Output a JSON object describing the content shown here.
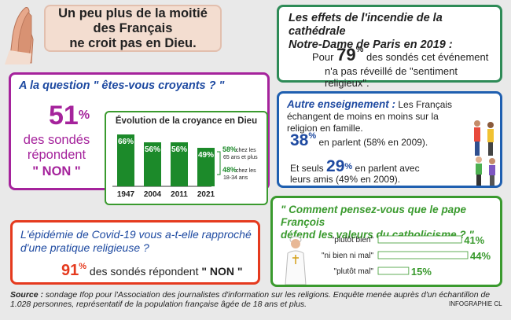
{
  "headline": "Un peu plus de la moitié des Français\nne croit pas en Dieu.",
  "question_block": {
    "question": "A la question \" êtes-vous croyants ? \"",
    "big_value": "51",
    "pct_sign": "%",
    "respondent_text": "des sondés\nrépondent",
    "answer": "\" NON \""
  },
  "chart_data": [
    {
      "type": "bar",
      "title": "Évolution de la croyance en Dieu",
      "categories": [
        "1947",
        "2004",
        "2011",
        "2021"
      ],
      "values": [
        66,
        56,
        56,
        49
      ],
      "value_labels": [
        "66%",
        "56%",
        "56%",
        "49%"
      ],
      "ylim": [
        0,
        70
      ],
      "color": "#1c8a2a",
      "annotations": [
        {
          "value": "58%",
          "text": "chez les 65 ans et plus",
          "line1": "chez les",
          "line2": "65 ans et plus"
        },
        {
          "value": "48%",
          "text": "chez les 18-34 ans",
          "line1": "chez les",
          "line2": "18-34 ans"
        }
      ]
    },
    {
      "type": "bar",
      "orientation": "horizontal",
      "title": "\" Comment pensez-vous que le pape François défend les valeurs du catholicisme ? \"",
      "categories": [
        "\"plutôt bien\"",
        "\"ni bien ni mal\"",
        "\"plutôt mal\""
      ],
      "values": [
        41,
        44,
        15
      ],
      "value_labels": [
        "41%",
        "44%",
        "15%"
      ],
      "xlim": [
        0,
        44
      ],
      "color": "#ffffff"
    }
  ],
  "notre_dame": {
    "title": "Les effets de l'incendie de la cathédrale\nNotre-Dame de Paris en 2019 :",
    "prefix": "Pour",
    "value": "79",
    "pct_sign": "%",
    "line1_rest": "des sondés cet événement",
    "line2": "n'a pas réveillé de \"sentiment religieux\"."
  },
  "teaching": {
    "label": "Autre enseignement :",
    "text": " Les Français échangent de moins en moins sur la religion en famille.",
    "value1": "38",
    "pct_sign": "%",
    "value1_text": "en parlent (58% en 2009).",
    "prefix2": "Et seuls",
    "value2": "29",
    "value2_text": "en parlent avec leurs amis (49% en 2009)."
  },
  "covid": {
    "question": "L'épidémie de Covid-19 vous a-t-elle rapproché\nd'une pratique religieuse ?",
    "value": "91",
    "pct_sign": "%",
    "text": " des sondés répondent ",
    "answer": "\" NON \""
  },
  "pope_question": "\" Comment pensez-vous que le pape François\ndéfend les valeurs du catholicisme ? \"",
  "source": {
    "label": "Source :",
    "text": " sondage Ifop pour l'Association des journalistes d'information sur les religions. Enquête menée auprès d'un échantillon de 1.028 personnes, représentatif de la population française âgée de 18 ans et plus."
  },
  "credit": "INFOGRAPHIE CL",
  "colors": {
    "purple": "#a5239c",
    "blue": "#1e4aa1",
    "green": "#3a9a2e",
    "red": "#e53a1e"
  }
}
